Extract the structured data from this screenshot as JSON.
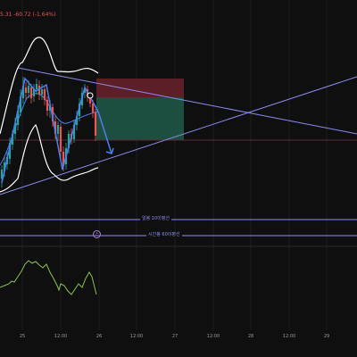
{
  "header": {
    "price_readout": "5.31  -60.72 (-1.64%)"
  },
  "levels": {
    "upper_label": "일봉 10이평선",
    "lower_label": "시간봉 60이평선"
  },
  "time_axis": {
    "ticks": [
      "25",
      "12:00",
      "26",
      "12:00",
      "27",
      "12:00",
      "28",
      "12:00",
      "29"
    ]
  },
  "colors": {
    "background": "#0f0f10",
    "up_candle": "#26a69a",
    "down_candle": "#ef5350",
    "trendline": "#8c8cf0",
    "pattern_line": "#4a7ff0",
    "envelope": "#ffffff",
    "oscillator": "#8bc34a",
    "short_stop_zone": "#5c1f28",
    "short_target_zone": "#1d4f41"
  },
  "icons": {
    "alert": "bell-icon"
  }
}
